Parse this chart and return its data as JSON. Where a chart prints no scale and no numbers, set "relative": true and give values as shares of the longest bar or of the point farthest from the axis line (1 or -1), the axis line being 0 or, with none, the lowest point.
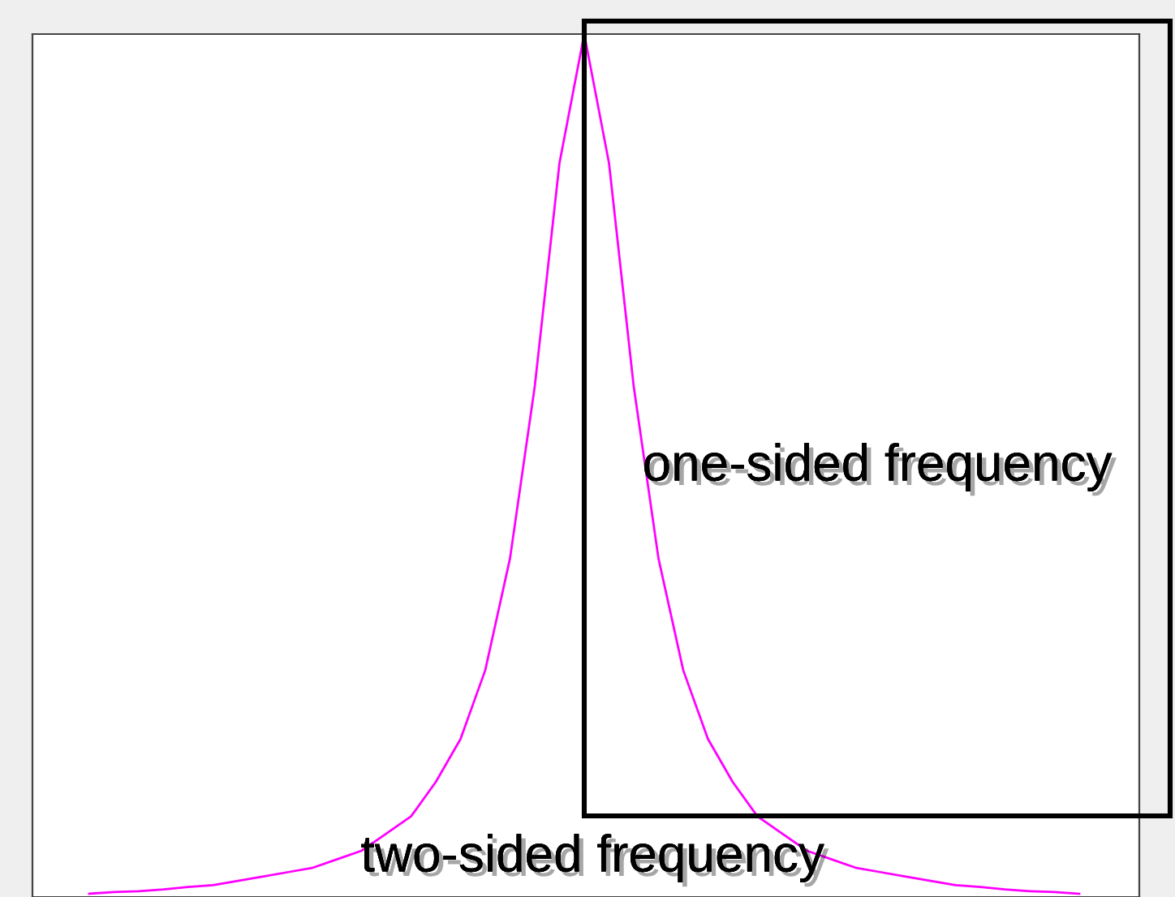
{
  "chart_data": {
    "type": "line",
    "relative": true,
    "categories": [
      null,
      null,
      null,
      null,
      null,
      null,
      null,
      null,
      null,
      null,
      null,
      null,
      null,
      null,
      null,
      null,
      null,
      null,
      null,
      null,
      null,
      null,
      null,
      null,
      null,
      null,
      null,
      null,
      null,
      null,
      null,
      null,
      null,
      null,
      null,
      null,
      null,
      null,
      null,
      null,
      null
    ],
    "series": [
      {
        "color": "#ff00ff",
        "values": [
          0,
          0.002,
          0.003,
          0.005,
          0.008,
          0.01,
          0.015,
          0.02,
          0.025,
          0.03,
          0.04,
          0.05,
          0.07,
          0.09,
          0.13,
          0.18,
          0.26,
          0.39,
          0.59,
          0.85,
          1,
          0.85,
          0.59,
          0.39,
          0.26,
          0.18,
          0.13,
          0.09,
          0.07,
          0.05,
          0.04,
          0.03,
          0.025,
          0.02,
          0.015,
          0.01,
          0.008,
          0.005,
          0.003,
          0.002,
          0
        ]
      }
    ],
    "annotations": [
      "one-sided frequency",
      "two-sided frequency"
    ],
    "marker": "none",
    "line_style": "solid"
  }
}
